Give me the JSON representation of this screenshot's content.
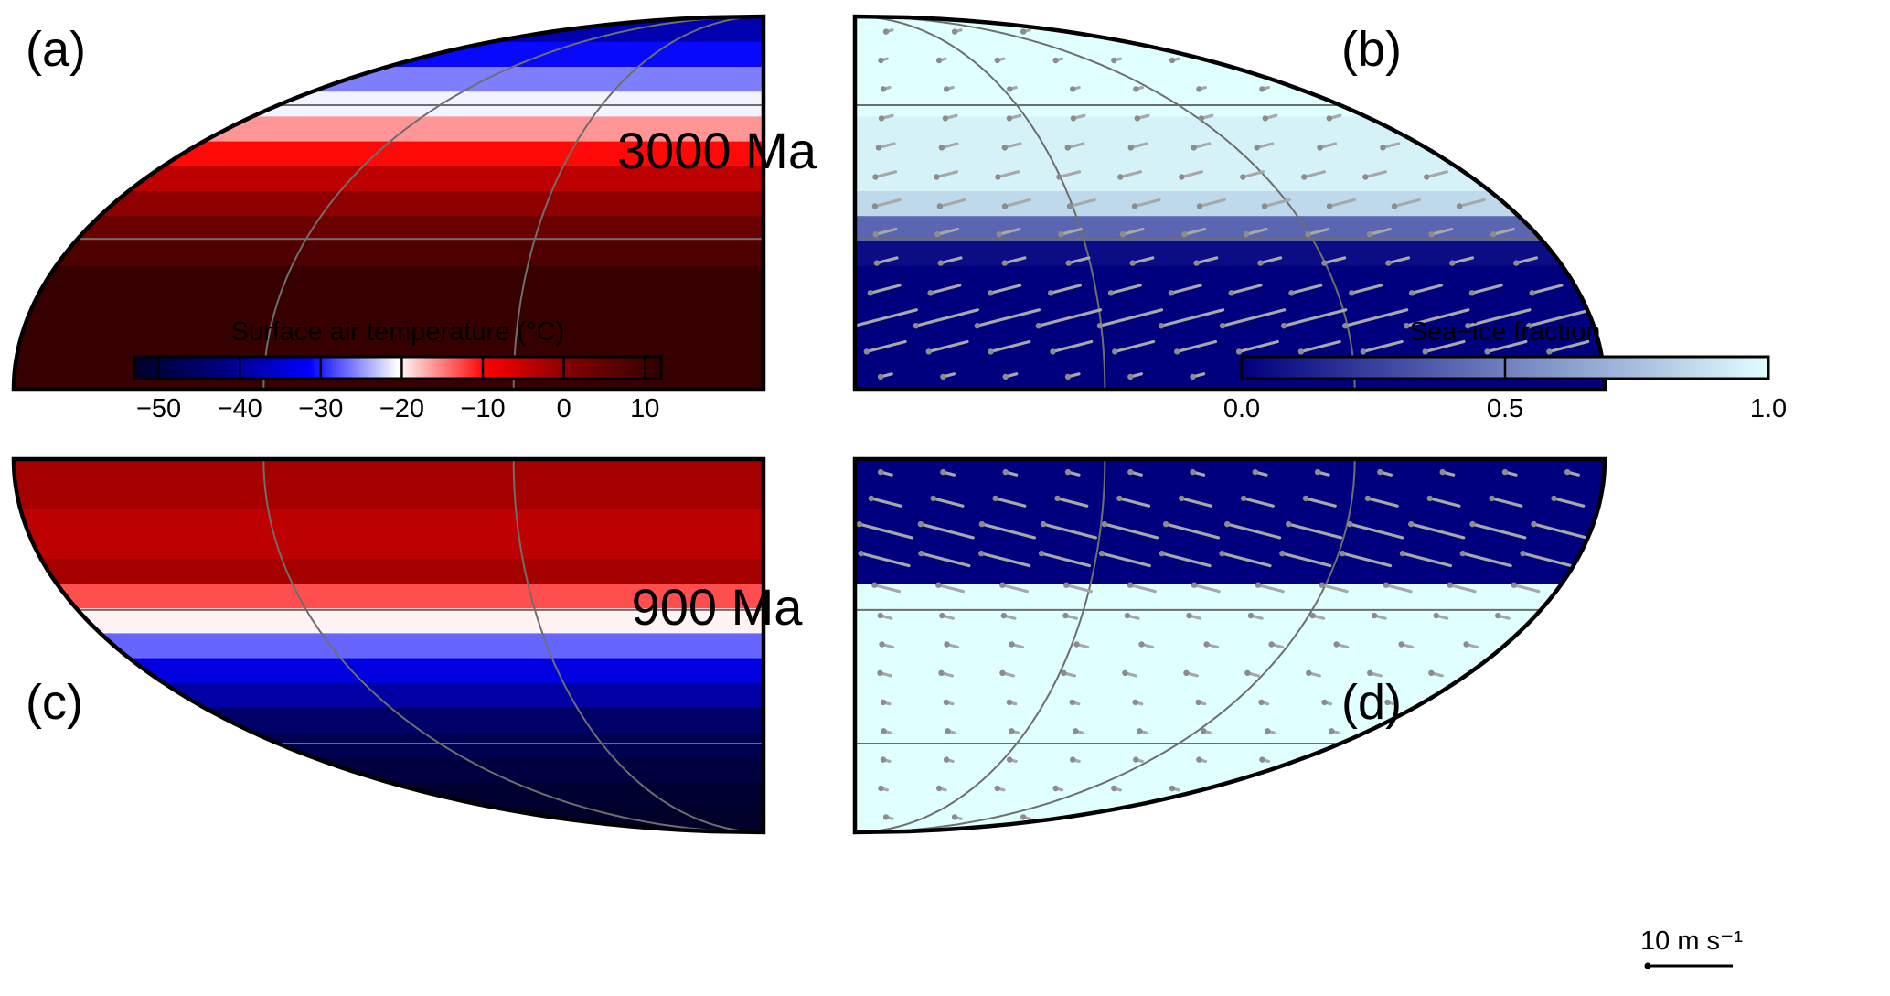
{
  "panel_labels": {
    "a": "(a)",
    "b": "(b)",
    "c": "(c)",
    "d": "(d)"
  },
  "epochs": {
    "top": "3000 Ma",
    "bottom": "900 Ma"
  },
  "wind_scale": {
    "label": "10 m s⁻¹",
    "value": 10
  },
  "chart_data": [
    {
      "type": "heatmap",
      "panel": "(a)",
      "epoch": "3000 Ma",
      "variable": "Surface air temperature",
      "units": "°C",
      "projection": "Mollweide (quadrant)",
      "hemisphere": "northern",
      "band_values_equator_to_pole": [
        11,
        11,
        11,
        11,
        11,
        8,
        4,
        0,
        -4,
        -10,
        -16,
        -21,
        -26,
        -31,
        -38
      ]
    },
    {
      "type": "heatmap",
      "panel": "(b)",
      "epoch": "3000 Ma",
      "variable": "Sea-ice fraction",
      "projection": "Mollweide (quadrant)",
      "hemisphere": "northern",
      "band_values_equator_to_pole": [
        0.0,
        0.0,
        0.0,
        0.0,
        0.0,
        0.05,
        0.4,
        0.85,
        0.95,
        0.95,
        0.95,
        1.0,
        1.0,
        1.0,
        1.0
      ],
      "wind_speed_rows_equator_to_pole": [
        2,
        8,
        13,
        6,
        4,
        4,
        5,
        4,
        3,
        2,
        1,
        1,
        1
      ],
      "wind_direction": "easterly with slight equatorward component"
    },
    {
      "type": "heatmap",
      "panel": "(c)",
      "epoch": "900 Ma",
      "variable": "Surface air temperature",
      "units": "°C",
      "projection": "Mollweide (quadrant)",
      "hemisphere": "southern",
      "band_values_equator_to_pole": [
        -2,
        -2,
        -4,
        -4,
        -2,
        -13,
        -20,
        -27,
        -34,
        -39,
        -45,
        -48,
        -50,
        -52,
        -54
      ]
    },
    {
      "type": "heatmap",
      "panel": "(d)",
      "epoch": "900 Ma",
      "variable": "Sea-ice fraction",
      "projection": "Mollweide (quadrant)",
      "hemisphere": "southern",
      "band_values_equator_to_pole": [
        0.0,
        0.0,
        0.0,
        0.0,
        0.0,
        1.0,
        1.0,
        1.0,
        1.0,
        1.0,
        1.0,
        1.0,
        1.0,
        1.0,
        1.0
      ],
      "wind_speed_rows_equator_to_pole": [
        2,
        6,
        11,
        10,
        5,
        2,
        2,
        2,
        1,
        1,
        1,
        1,
        1
      ],
      "wind_direction": "easterly with slight poleward component"
    }
  ],
  "colorbars": [
    {
      "title": "Surface air temperature (°C)",
      "ticks": [
        "−50",
        "−40",
        "−30",
        "−20",
        "−10",
        "0",
        "10"
      ],
      "tick_values": [
        -50,
        -40,
        -30,
        -20,
        -10,
        0,
        10
      ],
      "range": [
        -53,
        12
      ],
      "colors": [
        "#000028",
        "#000080",
        "#0000ff",
        "#ffffff",
        "#ff0000",
        "#800000",
        "#300000"
      ]
    },
    {
      "title": "Sea−ice fraction",
      "ticks": [
        "0.0",
        "0.5",
        "1.0"
      ],
      "tick_values": [
        0.0,
        0.5,
        1.0
      ],
      "range": [
        0.0,
        1.0
      ],
      "colors": [
        "#00007e",
        "#e0ffff"
      ]
    }
  ]
}
